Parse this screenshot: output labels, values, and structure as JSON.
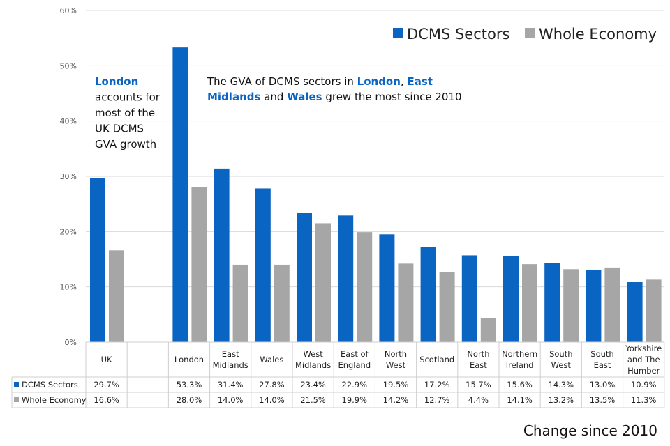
{
  "chart_data": {
    "type": "bar",
    "title": "",
    "xlabel": "Change since 2010",
    "ylabel": "",
    "ylim": [
      0,
      60
    ],
    "yticks": [
      "0%",
      "10%",
      "20%",
      "30%",
      "40%",
      "50%",
      "60%"
    ],
    "grid": true,
    "legend_position": "top-right",
    "categories": [
      "UK",
      "",
      "London",
      "East Midlands",
      "Wales",
      "West Midlands",
      "East of England",
      "North West",
      "Scotland",
      "North East",
      "Northern Ireland",
      "South West",
      "South East",
      "Yorkshire and The Humber"
    ],
    "category_lines": [
      [
        "UK"
      ],
      [
        ""
      ],
      [
        "London"
      ],
      [
        "East",
        "Midlands"
      ],
      [
        "Wales"
      ],
      [
        "West",
        "Midlands"
      ],
      [
        "East of",
        "England"
      ],
      [
        "North",
        "West"
      ],
      [
        "Scotland"
      ],
      [
        "North",
        "East"
      ],
      [
        "Northern",
        "Ireland"
      ],
      [
        "South",
        "West"
      ],
      [
        "South",
        "East"
      ],
      [
        "Yorkshire",
        "and The",
        "Humber"
      ]
    ],
    "series": [
      {
        "name": "DCMS Sectors",
        "color": "#0a64c2",
        "values": [
          29.7,
          null,
          53.3,
          31.4,
          27.8,
          23.4,
          22.9,
          19.5,
          17.2,
          15.7,
          15.6,
          14.3,
          13.0,
          10.9
        ],
        "labels": [
          "29.7%",
          "",
          "53.3%",
          "31.4%",
          "27.8%",
          "23.4%",
          "22.9%",
          "19.5%",
          "17.2%",
          "15.7%",
          "15.6%",
          "14.3%",
          "13.0%",
          "10.9%"
        ]
      },
      {
        "name": "Whole Economy",
        "color": "#a6a6a6",
        "values": [
          16.6,
          null,
          28.0,
          14.0,
          14.0,
          21.5,
          19.9,
          14.2,
          12.7,
          4.4,
          14.1,
          13.2,
          13.5,
          11.3
        ],
        "labels": [
          "16.6%",
          "",
          "28.0%",
          "14.0%",
          "14.0%",
          "21.5%",
          "19.9%",
          "14.2%",
          "12.7%",
          "4.4%",
          "14.1%",
          "13.2%",
          "13.5%",
          "11.3%"
        ]
      }
    ],
    "annotations": {
      "left": [
        [
          "London"
        ],
        [
          "accounts for"
        ],
        [
          "most of the"
        ],
        [
          "UK DCMS"
        ],
        [
          "GVA growth"
        ]
      ],
      "left_highlight": "London",
      "right_line1": [
        "The GVA of DCMS sectors in ",
        "London",
        ", ",
        "East"
      ],
      "right_line2": [
        "Midlands",
        " and ",
        "Wales",
        " grew the most since 2010"
      ]
    }
  }
}
